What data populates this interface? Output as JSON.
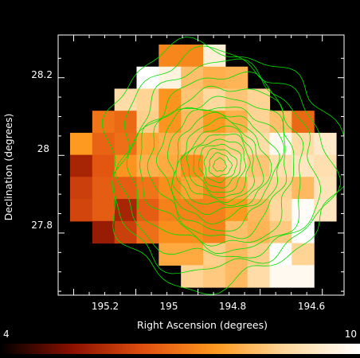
{
  "chart_data": {
    "type": "heatmap",
    "xlabel": "Right Ascension (degrees)",
    "ylabel": "Declination (degrees)",
    "xlim": [
      195.45,
      194.53
    ],
    "ylim": [
      27.64,
      28.31
    ],
    "x_ticks": [
      {
        "value": 195.2,
        "label": "195.2"
      },
      {
        "value": 195.0,
        "label": "195"
      },
      {
        "value": 194.8,
        "label": "194.8"
      },
      {
        "value": 194.6,
        "label": "194.6"
      }
    ],
    "y_ticks": [
      {
        "value": 28.2,
        "label": "28.2"
      },
      {
        "value": 28.0,
        "label": "28"
      },
      {
        "value": 27.8,
        "label": "27.8"
      }
    ],
    "colorbar": {
      "min": 4,
      "max": 10,
      "min_label": "4",
      "max_label": "10",
      "colors": [
        "#000000",
        "#8a1000",
        "#e05010",
        "#ff9a20",
        "#ffd9a0",
        "#ffffff"
      ]
    },
    "grid": {
      "cols": 12,
      "rows": 11,
      "values": [
        [
          null,
          null,
          null,
          null,
          7.3,
          7.3,
          9.5,
          null,
          null,
          null,
          null,
          null
        ],
        [
          null,
          null,
          null,
          10.0,
          9.6,
          8.3,
          8.0,
          8.1,
          null,
          null,
          null,
          null
        ],
        [
          null,
          null,
          8.9,
          8.7,
          7.5,
          8.4,
          8.8,
          8.4,
          8.7,
          null,
          null,
          null
        ],
        [
          null,
          7.0,
          6.8,
          8.6,
          7.5,
          8.2,
          7.6,
          8.0,
          8.7,
          8.3,
          6.8,
          null
        ],
        [
          7.6,
          6.7,
          6.9,
          7.8,
          8.0,
          8.3,
          8.3,
          8.6,
          8.9,
          9.8,
          8.9,
          9.3
        ],
        [
          5.6,
          6.5,
          7.5,
          8.0,
          7.9,
          7.4,
          8.3,
          8.8,
          8.4,
          9.0,
          9.2,
          9.0
        ],
        [
          6.1,
          6.6,
          6.6,
          7.0,
          7.4,
          7.8,
          7.3,
          8.0,
          8.6,
          8.7,
          8.2,
          9.1
        ],
        [
          6.2,
          6.6,
          5.6,
          6.6,
          7.2,
          7.2,
          7.2,
          7.6,
          8.2,
          8.8,
          9.9,
          9.2
        ],
        [
          null,
          5.4,
          6.1,
          6.9,
          7.4,
          7.4,
          7.2,
          8.3,
          8.1,
          8.5,
          10.0,
          null
        ],
        [
          null,
          null,
          null,
          null,
          7.9,
          7.9,
          8.6,
          8.2,
          8.6,
          10.0,
          8.7,
          null
        ],
        [
          null,
          null,
          null,
          null,
          null,
          8.7,
          8.5,
          8.2,
          8.9,
          9.8,
          9.8,
          null
        ]
      ]
    },
    "contour_color": "#00e000",
    "contours": {
      "center_ra": 194.93,
      "center_dec": 27.975,
      "level_radii_deg": [
        0.018,
        0.032,
        0.046,
        0.06,
        0.074,
        0.088,
        0.102,
        0.118,
        0.134,
        0.152,
        0.172,
        0.194,
        0.218,
        0.244,
        0.272,
        0.302,
        0.334
      ]
    }
  }
}
